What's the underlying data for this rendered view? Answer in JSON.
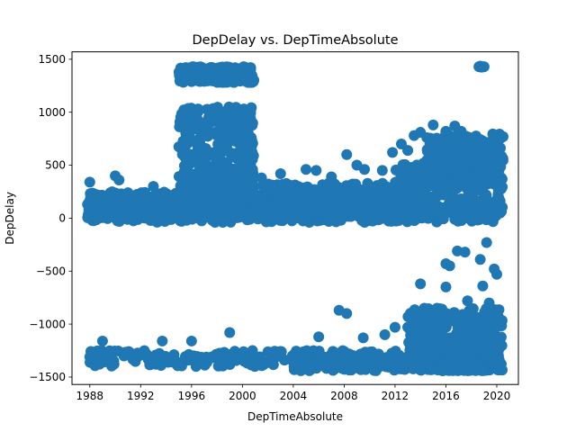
{
  "chart_data": {
    "type": "scatter",
    "title": "DepDelay vs. DepTimeAbsolute",
    "xlabel": "DepTimeAbsolute",
    "ylabel": "DepDelay",
    "xlim": [
      1986.6,
      2021.7
    ],
    "ylim": [
      -1570,
      1570
    ],
    "x_ticks": [
      1988,
      1992,
      1996,
      2000,
      2004,
      2008,
      2012,
      2016,
      2020
    ],
    "x_tick_labels": [
      "1988",
      "1992",
      "1996",
      "2000",
      "2004",
      "2008",
      "2012",
      "2016",
      "2020"
    ],
    "y_ticks": [
      -1500,
      -1000,
      -500,
      0,
      500,
      1000,
      1500
    ],
    "y_tick_labels": [
      "−1500",
      "−1000",
      "−500",
      "0",
      "500",
      "1000",
      "1500"
    ],
    "grid": false,
    "legend": "none",
    "marker_color": "#1f77b4",
    "clusters": [
      {
        "x": [
          1987.8,
          2020.5
        ],
        "y": [
          -40,
          180
        ]
      },
      {
        "x": [
          1987.8,
          2020.5
        ],
        "y": [
          -30,
          90
        ]
      },
      {
        "x": [
          1987.8,
          1995.0
        ],
        "y": [
          0,
          250
        ]
      },
      {
        "x": [
          1995.0,
          2001.0
        ],
        "y": [
          0,
          350
        ]
      },
      {
        "x": [
          1995.0,
          2000.9
        ],
        "y": [
          350,
          1050
        ]
      },
      {
        "x": [
          1995.0,
          2000.9
        ],
        "y": [
          1280,
          1430
        ]
      },
      {
        "x": [
          2001.0,
          2012.0
        ],
        "y": [
          0,
          330
        ]
      },
      {
        "x": [
          2012.0,
          2020.5
        ],
        "y": [
          0,
          520
        ]
      },
      {
        "x": [
          2014.5,
          2020.5
        ],
        "y": [
          300,
          800
        ]
      },
      {
        "x": [
          1987.8,
          2020.5
        ],
        "y": [
          -1400,
          -1250
        ]
      },
      {
        "x": [
          2004.0,
          2020.5
        ],
        "y": [
          -1440,
          -1310
        ]
      },
      {
        "x": [
          2015.3,
          2019.2
        ],
        "y": [
          -1440,
          -1380
        ]
      },
      {
        "x": [
          2013.0,
          2020.5
        ],
        "y": [
          -1300,
          -850
        ]
      }
    ],
    "points": [
      {
        "x": 1988.0,
        "y": 340
      },
      {
        "x": 1990.0,
        "y": 400
      },
      {
        "x": 1990.3,
        "y": 360
      },
      {
        "x": 1991.0,
        "y": 240
      },
      {
        "x": 1993.0,
        "y": 300
      },
      {
        "x": 1998.0,
        "y": 150
      },
      {
        "x": 2000.8,
        "y": 460
      },
      {
        "x": 2001.5,
        "y": 380
      },
      {
        "x": 2003.0,
        "y": 420
      },
      {
        "x": 2005.0,
        "y": 460
      },
      {
        "x": 2005.8,
        "y": 450
      },
      {
        "x": 2007.0,
        "y": 390
      },
      {
        "x": 2008.2,
        "y": 600
      },
      {
        "x": 2009.0,
        "y": 500
      },
      {
        "x": 2009.6,
        "y": 460
      },
      {
        "x": 2011.0,
        "y": 450
      },
      {
        "x": 2011.8,
        "y": 620
      },
      {
        "x": 2012.5,
        "y": 700
      },
      {
        "x": 2013.0,
        "y": 640
      },
      {
        "x": 2013.5,
        "y": 780
      },
      {
        "x": 2014.0,
        "y": 810
      },
      {
        "x": 2014.5,
        "y": 760
      },
      {
        "x": 2015.0,
        "y": 880
      },
      {
        "x": 2016.0,
        "y": 820
      },
      {
        "x": 2016.7,
        "y": 870
      },
      {
        "x": 2017.2,
        "y": 820
      },
      {
        "x": 2018.4,
        "y": 700
      },
      {
        "x": 2019.1,
        "y": 660
      },
      {
        "x": 2019.6,
        "y": 730
      },
      {
        "x": 2019.9,
        "y": 600
      },
      {
        "x": 2018.6,
        "y": 1430
      },
      {
        "x": 2018.8,
        "y": 1425
      },
      {
        "x": 2018.7,
        "y": 1435
      },
      {
        "x": 2018.9,
        "y": 1428
      },
      {
        "x": 2019.0,
        "y": 1430
      },
      {
        "x": 2019.2,
        "y": -230
      },
      {
        "x": 2016.9,
        "y": -310
      },
      {
        "x": 2017.5,
        "y": -320
      },
      {
        "x": 2016.0,
        "y": -430
      },
      {
        "x": 2016.3,
        "y": -450
      },
      {
        "x": 2018.7,
        "y": -390
      },
      {
        "x": 2019.8,
        "y": -480
      },
      {
        "x": 2020.0,
        "y": -530
      },
      {
        "x": 2018.9,
        "y": -640
      },
      {
        "x": 2016.0,
        "y": -650
      },
      {
        "x": 2014.0,
        "y": -620
      },
      {
        "x": 2017.7,
        "y": -780
      },
      {
        "x": 2019.4,
        "y": -800
      },
      {
        "x": 2015.3,
        "y": -850
      },
      {
        "x": 2014.3,
        "y": -850
      },
      {
        "x": 2007.6,
        "y": -870
      },
      {
        "x": 2008.2,
        "y": -900
      },
      {
        "x": 1999.0,
        "y": -1080
      },
      {
        "x": 1989.0,
        "y": -1160
      },
      {
        "x": 1993.7,
        "y": -1160
      },
      {
        "x": 1996.0,
        "y": -1160
      },
      {
        "x": 2006.0,
        "y": -1120
      },
      {
        "x": 2009.5,
        "y": -1130
      },
      {
        "x": 2011.2,
        "y": -1100
      },
      {
        "x": 2012.0,
        "y": -1030
      },
      {
        "x": 1992.8,
        "y": -1380
      },
      {
        "x": 1993.6,
        "y": -1390
      },
      {
        "x": 1988.0,
        "y": -1310
      }
    ]
  }
}
